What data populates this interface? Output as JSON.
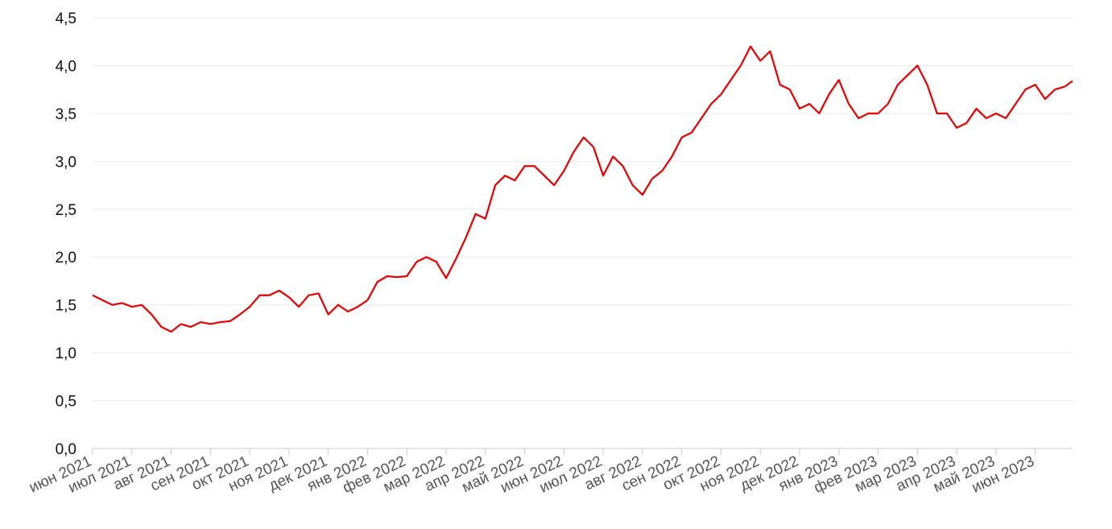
{
  "chart_data": {
    "type": "line",
    "x": [
      0,
      0.25,
      0.5,
      0.75,
      1,
      1.25,
      1.5,
      1.75,
      2,
      2.25,
      2.5,
      2.75,
      3,
      3.25,
      3.5,
      3.75,
      4,
      4.25,
      4.5,
      4.75,
      5,
      5.25,
      5.5,
      5.75,
      6,
      6.25,
      6.5,
      6.75,
      7,
      7.25,
      7.5,
      7.75,
      8,
      8.25,
      8.5,
      8.75,
      9,
      9.25,
      9.5,
      9.75,
      10,
      10.25,
      10.5,
      10.75,
      11,
      11.25,
      11.5,
      11.75,
      12,
      12.25,
      12.5,
      12.75,
      13,
      13.25,
      13.5,
      13.75,
      14,
      14.25,
      14.5,
      14.75,
      15,
      15.25,
      15.5,
      15.75,
      16,
      16.25,
      16.5,
      16.75,
      17,
      17.25,
      17.5,
      17.75,
      18,
      18.25,
      18.5,
      18.75,
      19,
      19.25,
      19.5,
      19.75,
      20,
      20.25,
      20.5,
      20.75,
      21,
      21.25,
      21.5,
      21.75,
      22,
      22.25,
      22.5,
      22.75,
      23,
      23.25,
      23.5,
      23.75,
      24,
      24.25,
      24.5,
      24.75,
      24.95
    ],
    "series": [
      {
        "color": "#e00000",
        "values": [
          1.6,
          1.55,
          1.5,
          1.52,
          1.48,
          1.5,
          1.4,
          1.27,
          1.22,
          1.3,
          1.27,
          1.32,
          1.3,
          1.32,
          1.33,
          1.4,
          1.48,
          1.6,
          1.6,
          1.65,
          1.58,
          1.48,
          1.6,
          1.62,
          1.4,
          1.5,
          1.43,
          1.48,
          1.55,
          1.74,
          1.8,
          1.79,
          1.8,
          1.95,
          2.0,
          1.95,
          1.78,
          1.98,
          2.2,
          2.45,
          2.4,
          2.75,
          2.85,
          2.8,
          2.95,
          2.95,
          2.85,
          2.75,
          2.9,
          3.1,
          3.25,
          3.15,
          2.85,
          3.05,
          2.95,
          2.75,
          2.65,
          2.82,
          2.9,
          3.05,
          3.25,
          3.3,
          3.45,
          3.6,
          3.7,
          3.85,
          4.0,
          4.2,
          4.05,
          4.15,
          3.8,
          3.75,
          3.55,
          3.6,
          3.5,
          3.7,
          3.85,
          3.6,
          3.45,
          3.5,
          3.5,
          3.6,
          3.8,
          3.9,
          4.0,
          3.8,
          3.5,
          3.5,
          3.35,
          3.4,
          3.55,
          3.45,
          3.5,
          3.45,
          3.6,
          3.75,
          3.8,
          3.65,
          3.75,
          3.78,
          3.84
        ]
      }
    ],
    "xlim": [
      0,
      24.95
    ],
    "xticks": [
      {
        "value": 0,
        "label": "июн 2021"
      },
      {
        "value": 1,
        "label": "июл 2021"
      },
      {
        "value": 2,
        "label": "авг 2021"
      },
      {
        "value": 3,
        "label": "сен 2021"
      },
      {
        "value": 4,
        "label": "окт 2021"
      },
      {
        "value": 5,
        "label": "ноя 2021"
      },
      {
        "value": 6,
        "label": "дек 2021"
      },
      {
        "value": 7,
        "label": "янв 2022"
      },
      {
        "value": 8,
        "label": "фев 2022"
      },
      {
        "value": 9,
        "label": "мар 2022"
      },
      {
        "value": 10,
        "label": "апр 2022"
      },
      {
        "value": 11,
        "label": "май 2022"
      },
      {
        "value": 12,
        "label": "июн 2022"
      },
      {
        "value": 13,
        "label": "июл 2022"
      },
      {
        "value": 14,
        "label": "авг 2022"
      },
      {
        "value": 15,
        "label": "сен 2022"
      },
      {
        "value": 16,
        "label": "окт 2022"
      },
      {
        "value": 17,
        "label": "ноя 2022"
      },
      {
        "value": 18,
        "label": "дек 2022"
      },
      {
        "value": 19,
        "label": "янв 2023"
      },
      {
        "value": 20,
        "label": "фев 2023"
      },
      {
        "value": 21,
        "label": "мар 2023"
      },
      {
        "value": 22,
        "label": "апр 2023"
      },
      {
        "value": 23,
        "label": "май 2023"
      },
      {
        "value": 24,
        "label": "июн 2023"
      }
    ],
    "ylim": [
      0,
      4.5
    ],
    "yticks": [
      {
        "value": 0,
        "label": "0,0"
      },
      {
        "value": 0.5,
        "label": "0,5"
      },
      {
        "value": 1,
        "label": "1,0"
      },
      {
        "value": 1.5,
        "label": "1,5"
      },
      {
        "value": 2,
        "label": "2,0"
      },
      {
        "value": 2.5,
        "label": "2,5"
      },
      {
        "value": 3,
        "label": "3,0"
      },
      {
        "value": 3.5,
        "label": "3,5"
      },
      {
        "value": 4,
        "label": "4,0"
      },
      {
        "value": 4.5,
        "label": "4,5"
      }
    ],
    "grid": true
  }
}
